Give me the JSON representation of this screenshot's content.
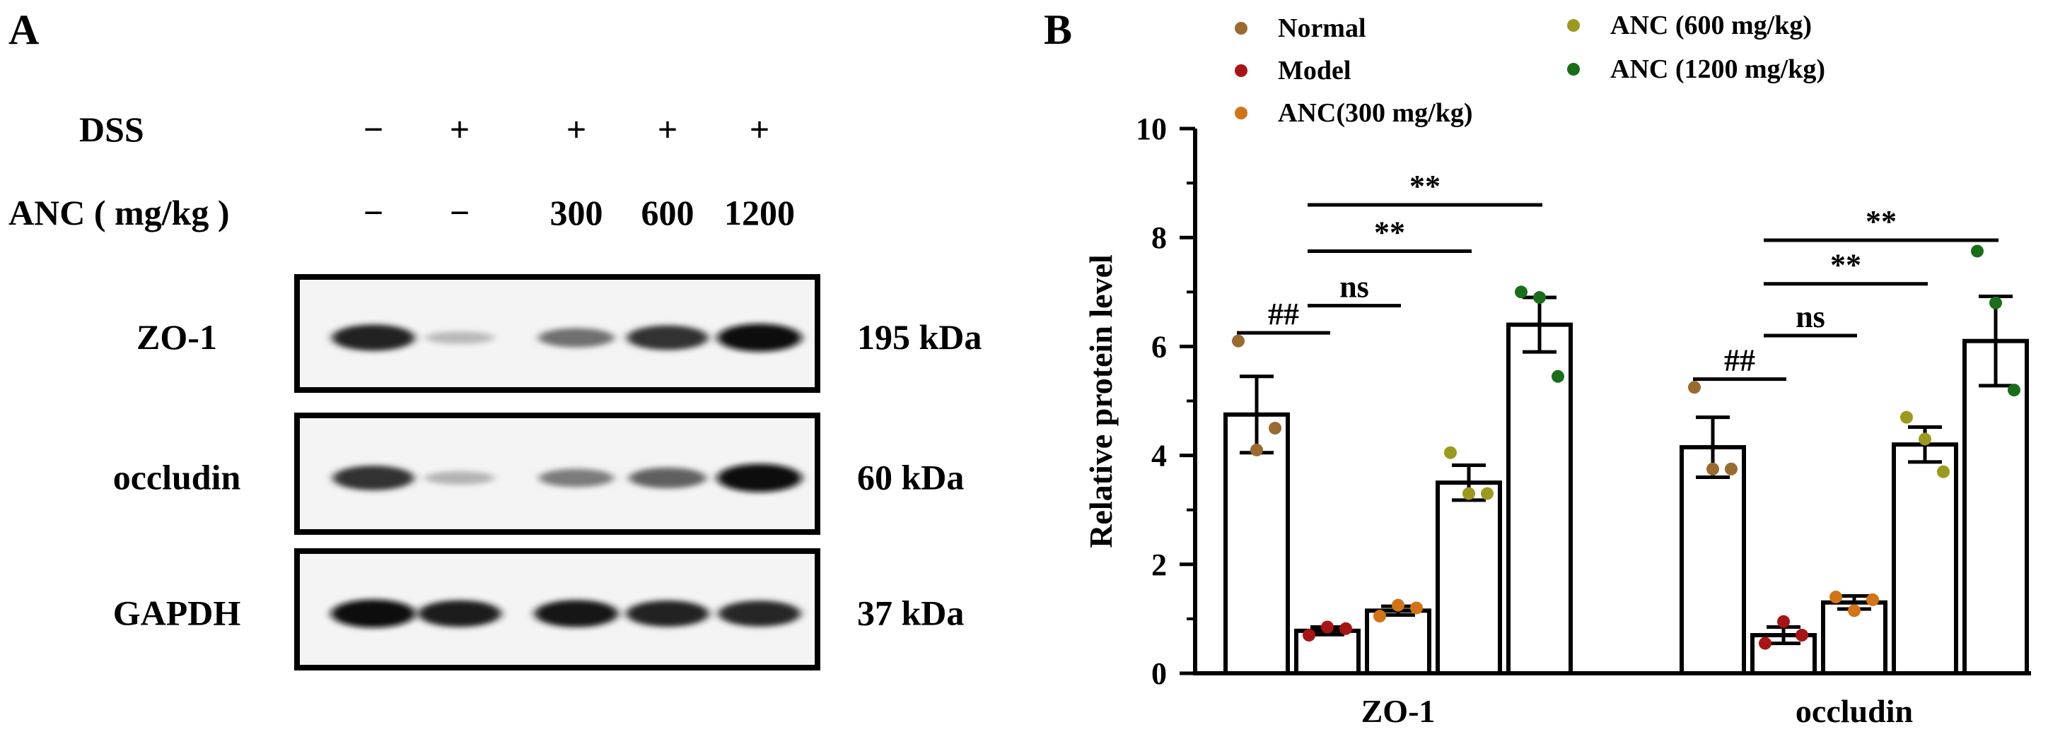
{
  "panel_a": {
    "label": "A",
    "rows": [
      {
        "label": "DSS",
        "values": [
          "−",
          "+",
          "+",
          "+",
          "+"
        ]
      },
      {
        "label": "ANC ( mg/kg )",
        "values": [
          "−",
          "−",
          "300",
          "600",
          "1200"
        ]
      }
    ],
    "blots": [
      {
        "name": "ZO-1",
        "size": "195 kDa",
        "intensity": [
          0.9,
          0.22,
          0.55,
          0.82,
          0.98
        ]
      },
      {
        "name": "occludin",
        "size": "60 kDa",
        "intensity": [
          0.82,
          0.25,
          0.5,
          0.62,
          1.0
        ]
      },
      {
        "name": "GAPDH",
        "size": "37 kDa",
        "intensity": [
          1.0,
          0.92,
          0.95,
          0.9,
          0.88
        ]
      }
    ]
  },
  "panel_b": {
    "label": "B"
  },
  "colors": {
    "normal": "#9A6A2F",
    "model": "#A81414",
    "anc300": "#D27416",
    "anc600": "#9C9A1E",
    "anc1200": "#1A6E1A"
  },
  "chart_data": {
    "type": "bar",
    "categories": [
      "ZO-1",
      "occludin"
    ],
    "ylabel": "Relative protein level",
    "xlabel": "",
    "ylim": [
      0,
      10
    ],
    "yticks": [
      "0",
      "2",
      "4",
      "6",
      "8",
      "10"
    ],
    "legend_position": "top",
    "series": [
      {
        "name": "Normal",
        "color": "#9A6A2F",
        "values": [
          4.75,
          4.15
        ],
        "sem": [
          0.7,
          0.55
        ],
        "points": [
          [
            6.1,
            4.1,
            4.5
          ],
          [
            5.25,
            3.75,
            3.75
          ]
        ]
      },
      {
        "name": "Model",
        "color": "#A81414",
        "values": [
          0.78,
          0.7
        ],
        "sem": [
          0.07,
          0.15
        ],
        "points": [
          [
            0.7,
            0.85,
            0.82
          ],
          [
            0.55,
            0.95,
            0.7
          ]
        ]
      },
      {
        "name": "ANC(300 mg/kg)",
        "color": "#D27416",
        "values": [
          1.15,
          1.3
        ],
        "sem": [
          0.08,
          0.12
        ],
        "points": [
          [
            1.05,
            1.25,
            1.2
          ],
          [
            1.4,
            1.15,
            1.35
          ]
        ]
      },
      {
        "name": "ANC (600 mg/kg)",
        "color": "#9C9A1E",
        "values": [
          3.5,
          4.2
        ],
        "sem": [
          0.32,
          0.32
        ],
        "points": [
          [
            4.05,
            3.3,
            3.3
          ],
          [
            4.7,
            4.3,
            3.7
          ]
        ]
      },
      {
        "name": "ANC (1200 mg/kg)",
        "color": "#1A6E1A",
        "values": [
          6.4,
          6.1
        ],
        "sem": [
          0.5,
          0.82
        ],
        "points": [
          [
            7.0,
            6.9,
            5.45
          ],
          [
            7.75,
            6.8,
            5.2
          ]
        ]
      }
    ],
    "annotations": [
      {
        "category": 0,
        "from": 0,
        "to": 1,
        "y": 6.25,
        "text": "##"
      },
      {
        "category": 0,
        "from": 1,
        "to": 2,
        "y": 6.75,
        "text": "ns"
      },
      {
        "category": 0,
        "from": 1,
        "to": 3,
        "y": 7.75,
        "text": "**"
      },
      {
        "category": 0,
        "from": 1,
        "to": 4,
        "y": 8.6,
        "text": "**"
      },
      {
        "category": 1,
        "from": 0,
        "to": 1,
        "y": 5.4,
        "text": "##"
      },
      {
        "category": 1,
        "from": 1,
        "to": 2,
        "y": 6.2,
        "text": "ns"
      },
      {
        "category": 1,
        "from": 1,
        "to": 3,
        "y": 7.15,
        "text": "**"
      },
      {
        "category": 1,
        "from": 1,
        "to": 4,
        "y": 7.95,
        "text": "**"
      }
    ]
  }
}
